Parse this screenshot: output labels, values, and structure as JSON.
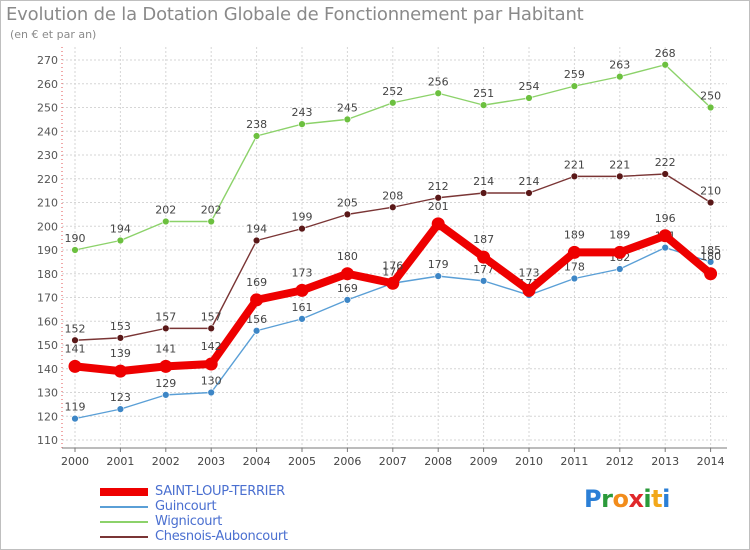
{
  "header": {
    "title": "Evolution de la Dotation Globale de Fonctionnement par Habitant",
    "subtitle": "(en € et par an)"
  },
  "logo": {
    "text": "Proxiti",
    "letters": [
      "P",
      "r",
      "o",
      "x",
      "i",
      "t",
      "i"
    ],
    "colors": [
      "#2b7fd6",
      "#2b9a3a",
      "#f28c1b",
      "#e0282b",
      "#2b9a3a",
      "#f2a81b",
      "#2b7fd6"
    ]
  },
  "chart_data": {
    "type": "line",
    "title": "Evolution de la Dotation Globale de Fonctionnement par Habitant",
    "ylabel": "(en € et par an)",
    "xlabel": "",
    "ylim": [
      110,
      270
    ],
    "yticks": [
      110,
      120,
      130,
      140,
      150,
      160,
      170,
      180,
      190,
      200,
      210,
      220,
      230,
      240,
      250,
      260,
      270
    ],
    "grid": true,
    "legend": "bottom-left",
    "x": [
      "2000",
      "2001",
      "2002",
      "2003",
      "2004",
      "2005",
      "2006",
      "2007",
      "2008",
      "2009",
      "2010",
      "2011",
      "2012",
      "2013",
      "2014"
    ],
    "series": [
      {
        "name": "Wignicourt",
        "color": "#8cd26a",
        "marker": "#6cc03f",
        "emphasis": false,
        "label_dir": "above",
        "values": [
          190,
          194,
          202,
          202,
          238,
          243,
          245,
          252,
          256,
          251,
          254,
          259,
          263,
          268,
          250
        ]
      },
      {
        "name": "Chesnois-Auboncourt",
        "color": "#7a3535",
        "marker": "#5a1818",
        "emphasis": false,
        "label_dir": "above",
        "values": [
          152,
          153,
          157,
          157,
          194,
          199,
          205,
          208,
          212,
          214,
          214,
          221,
          221,
          222,
          210
        ]
      },
      {
        "name": "Guincourt",
        "color": "#5a9fd6",
        "marker": "#3d86c6",
        "emphasis": false,
        "label_dir": "above",
        "values": [
          119,
          123,
          129,
          130,
          156,
          161,
          169,
          176,
          179,
          177,
          171,
          178,
          182,
          191,
          185
        ]
      },
      {
        "name": "SAINT-LOUP-TERRIER",
        "color": "#ee0000",
        "marker": "#ee0000",
        "emphasis": true,
        "label_dir": "above",
        "values": [
          141,
          139,
          141,
          142,
          169,
          173,
          180,
          176,
          201,
          187,
          173,
          189,
          189,
          196,
          180
        ]
      }
    ],
    "legend_order": [
      "SAINT-LOUP-TERRIER",
      "Guincourt",
      "Wignicourt",
      "Chesnois-Auboncourt"
    ],
    "legend_colors": {
      "SAINT-LOUP-TERRIER": "#4a6fd0",
      "Guincourt": "#4a6fd0",
      "Wignicourt": "#4a6fd0",
      "Chesnois-Auboncourt": "#4a6fd0"
    }
  }
}
